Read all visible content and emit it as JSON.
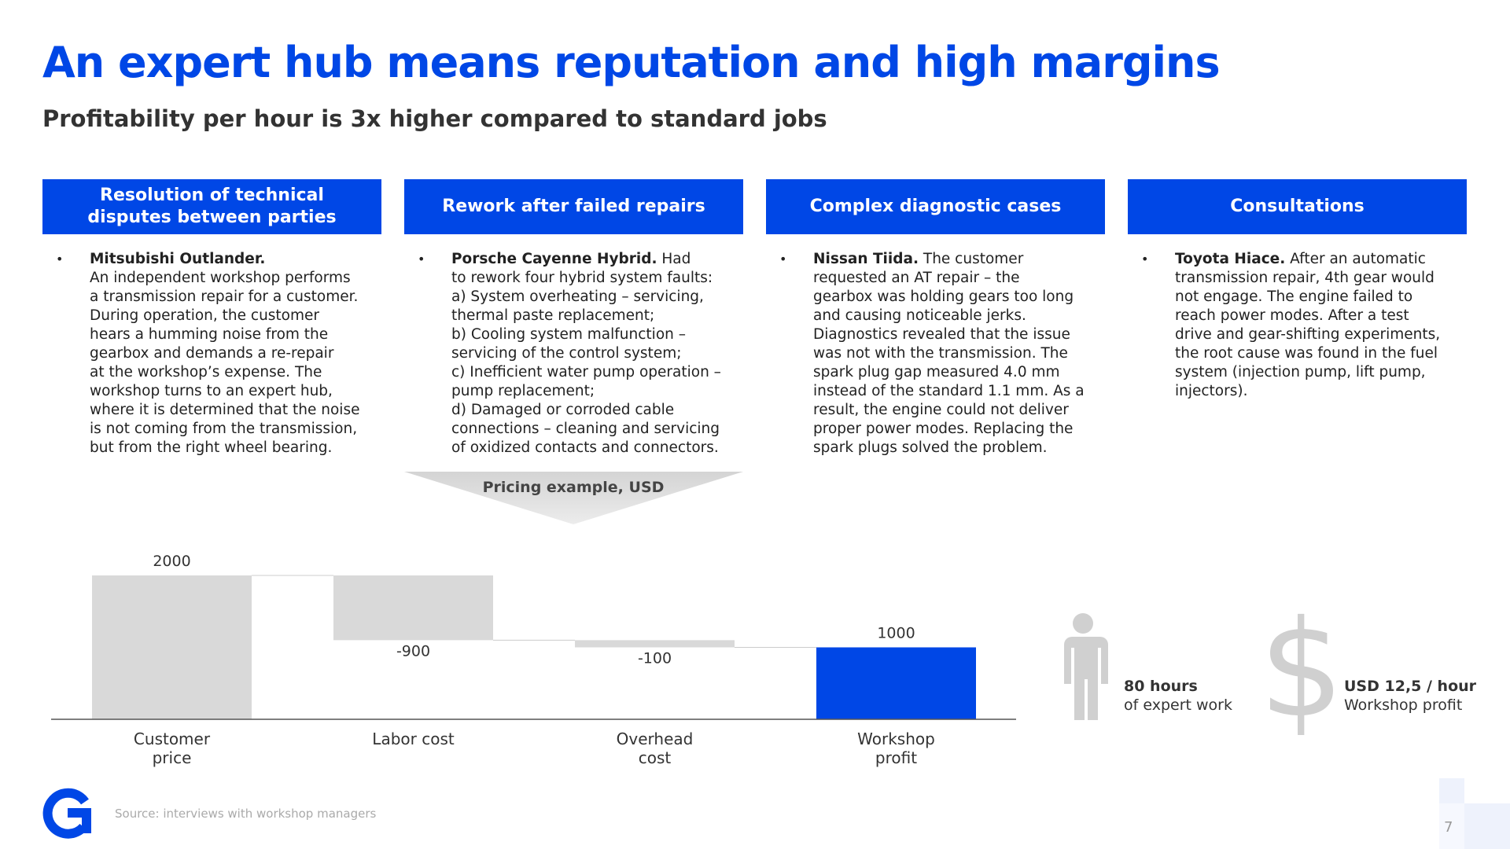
{
  "title": "An expert hub means reputation and high margins",
  "subtitle": "Profitability per hour is 3x higher compared to standard jobs",
  "columns": [
    {
      "header": "Resolution of technical disputes between parties",
      "bold": "Mitsubishi Outlander.",
      "bold_alone": true,
      "lines": [
        "An independent workshop performs",
        "a transmission repair for a customer.",
        "During operation, the customer",
        "hears a humming noise from the",
        "gearbox and demands a re-repair",
        "at the workshop’s expense. The",
        "workshop turns to an expert hub,",
        "where it is determined that the noise",
        "is not coming from the transmission,",
        "but from the right wheel bearing."
      ]
    },
    {
      "header": "Rework after failed repairs",
      "bold": "Porsche Cayenne Hybrid.",
      "bold_alone": false,
      "lines": [
        "Had",
        "to rework four hybrid system faults:",
        "a) System overheating – servicing,",
        "thermal paste replacement;",
        "b) Cooling system malfunction –",
        "servicing of the control system;",
        "c) Inefficient water pump operation –",
        "pump replacement;",
        "d) Damaged or corroded cable",
        "connections – cleaning and servicing",
        "of oxidized contacts and connectors."
      ]
    },
    {
      "header": "Complex diagnostic cases",
      "bold": "Nissan Tiida.",
      "bold_alone": false,
      "lines": [
        "The customer",
        "requested an AT repair – the",
        "gearbox was holding gears too long",
        "and causing noticeable jerks.",
        "Diagnostics revealed that the issue",
        "was not with the transmission. The",
        "spark plug gap measured 4.0 mm",
        "instead of the standard 1.1 mm. As a",
        "result, the engine could not deliver",
        "proper power modes. Replacing the",
        "spark plugs solved the problem."
      ]
    },
    {
      "header": "Consultations",
      "bold": "Toyota Hiace.",
      "bold_alone": false,
      "lines": [
        "After an automatic",
        "transmission repair, 4th gear would",
        "not engage. The engine failed to",
        "reach power modes. After a test",
        "drive and gear-shifting experiments,",
        "the root cause was found in the fuel",
        "system (injection pump, lift pump,",
        "injectors)."
      ]
    }
  ],
  "pricing_label": "Pricing example, USD",
  "chart_data": {
    "type": "waterfall",
    "categories": [
      "Customer price",
      "Labor cost",
      "Overhead cost",
      "Workshop profit"
    ],
    "values": [
      2000,
      -900,
      -100,
      1000
    ],
    "totals": [
      false,
      false,
      false,
      true
    ],
    "total_color": "#0047e6",
    "step_color": "#d9d9d9"
  },
  "stats": [
    {
      "value": "80 hours",
      "label": "of expert work"
    },
    {
      "value": "USD 12,5 / hour",
      "label": "Workshop profit"
    }
  ],
  "source": "Source: interviews with workshop managers",
  "page_number": "7"
}
